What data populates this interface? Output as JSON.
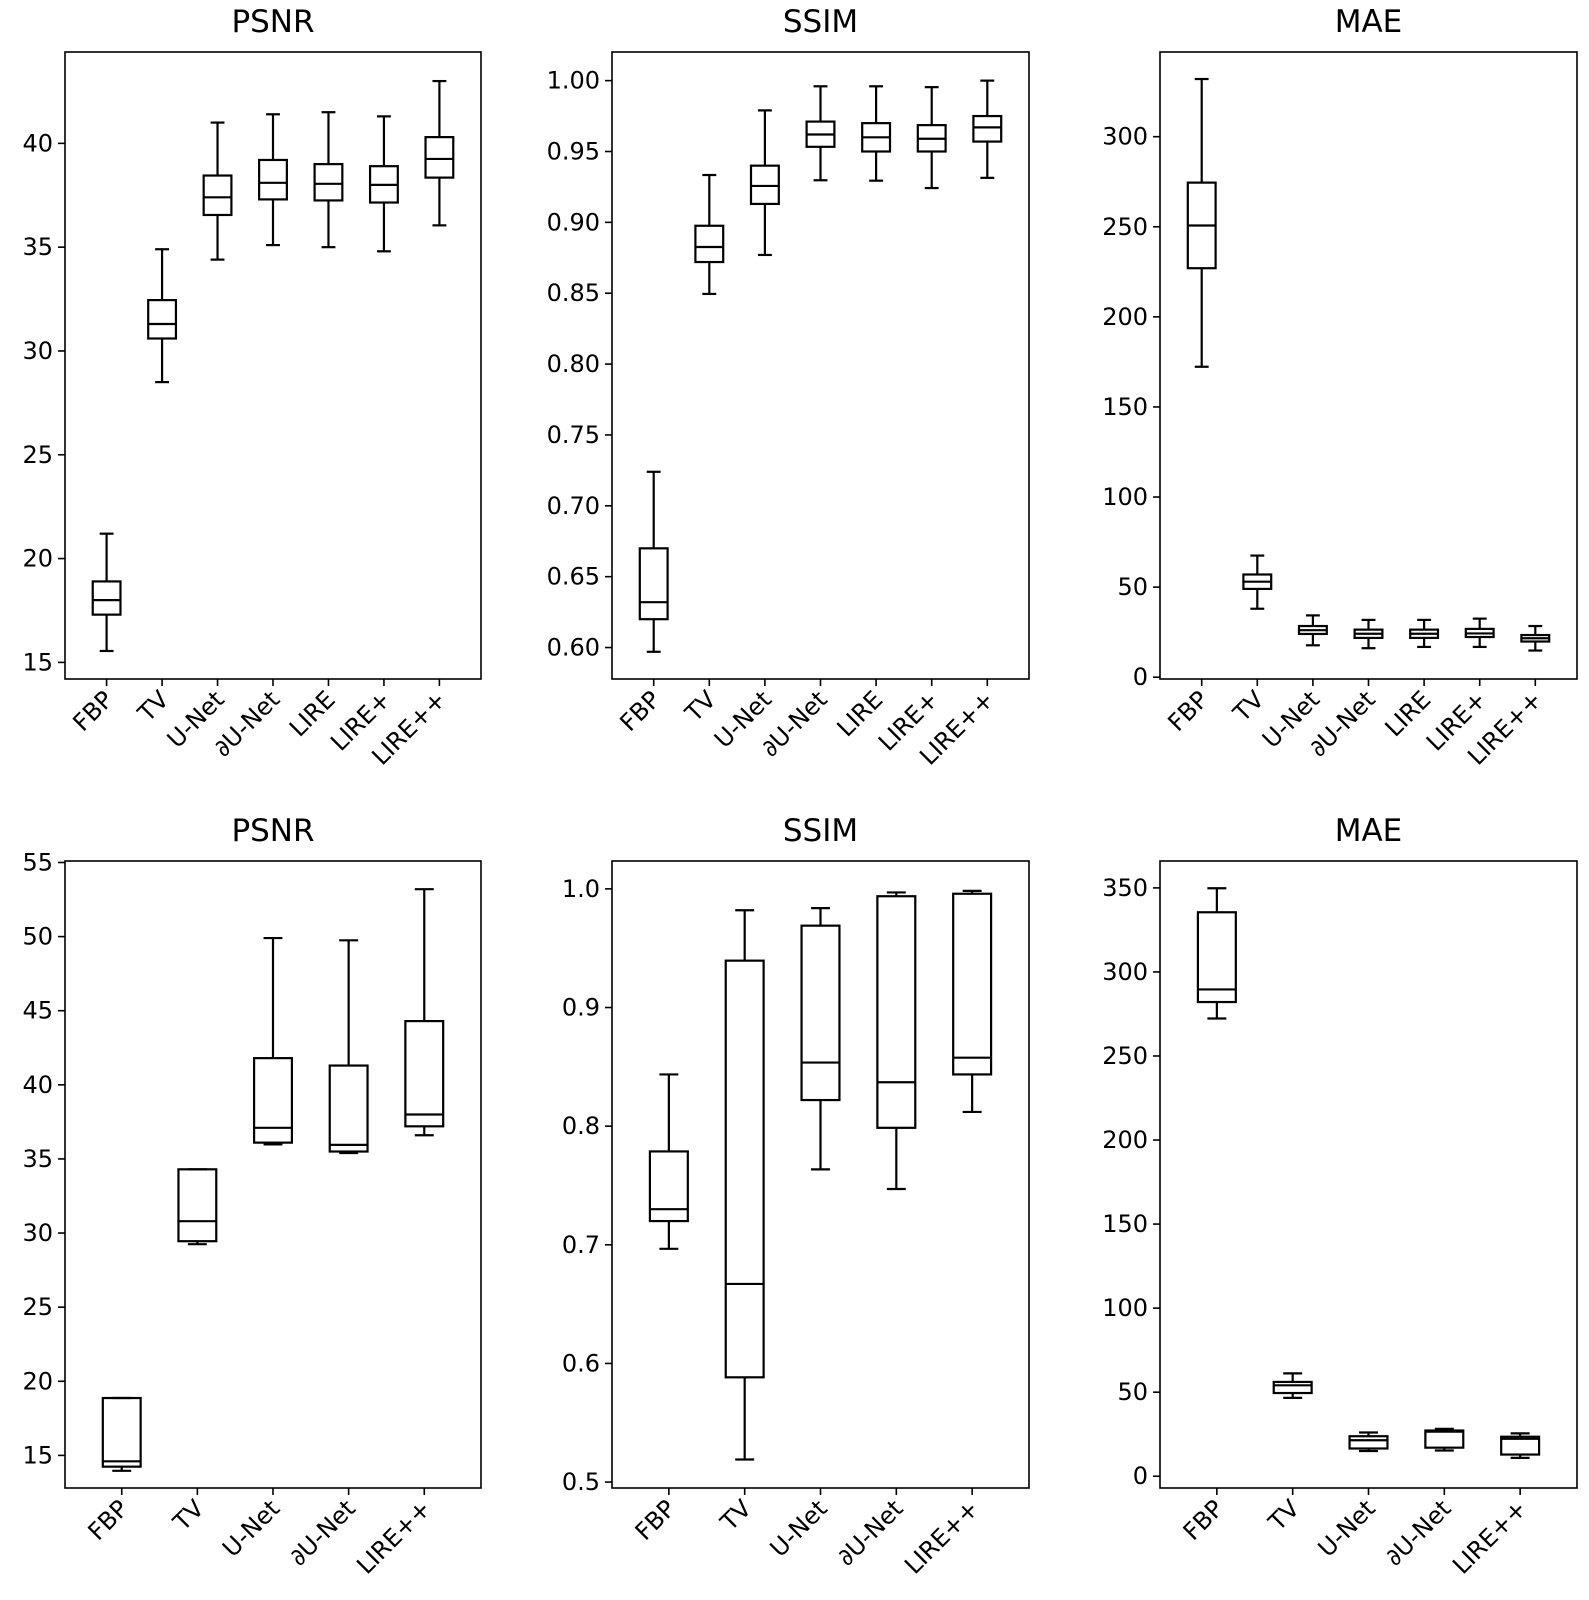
{
  "chart_data": [
    {
      "type": "boxplot",
      "title": "PSNR",
      "row": "top",
      "categories": [
        "FBP",
        "TV",
        "U-Net",
        "∂U-Net",
        "LIRE",
        "LIRE+",
        "LIRE++"
      ],
      "ylim": [
        14.2,
        44.4
      ],
      "yticks": [
        15,
        20,
        25,
        30,
        35,
        40
      ],
      "ytick_labels": [
        "15",
        "20",
        "25",
        "30",
        "35",
        "40"
      ],
      "boxes": [
        {
          "whislo": 15.55,
          "q1": 17.3,
          "med": 18.0,
          "q3": 18.9,
          "whishi": 21.2
        },
        {
          "whislo": 28.5,
          "q1": 30.6,
          "med": 31.3,
          "q3": 32.45,
          "whishi": 34.9
        },
        {
          "whislo": 34.4,
          "q1": 36.55,
          "med": 37.4,
          "q3": 38.45,
          "whishi": 41.0
        },
        {
          "whislo": 35.1,
          "q1": 37.3,
          "med": 38.1,
          "q3": 39.2,
          "whishi": 41.4
        },
        {
          "whislo": 35.0,
          "q1": 37.25,
          "med": 38.05,
          "q3": 39.0,
          "whishi": 41.5
        },
        {
          "whislo": 34.8,
          "q1": 37.15,
          "med": 38.0,
          "q3": 38.9,
          "whishi": 41.3
        },
        {
          "whislo": 36.05,
          "q1": 38.35,
          "med": 39.25,
          "q3": 40.3,
          "whishi": 43.0
        }
      ]
    },
    {
      "type": "boxplot",
      "title": "SSIM",
      "row": "top",
      "categories": [
        "FBP",
        "TV",
        "U-Net",
        "∂U-Net",
        "LIRE",
        "LIRE+",
        "LIRE++"
      ],
      "ylim": [
        0.5778,
        1.0202
      ],
      "yticks": [
        0.6,
        0.65,
        0.7,
        0.75,
        0.8,
        0.85,
        0.9,
        0.95,
        1.0
      ],
      "ytick_labels": [
        "0.60",
        "0.65",
        "0.70",
        "0.75",
        "0.80",
        "0.85",
        "0.90",
        "0.95",
        "1.00"
      ],
      "boxes": [
        {
          "whislo": 0.597,
          "q1": 0.62,
          "med": 0.632,
          "q3": 0.67,
          "whishi": 0.724
        },
        {
          "whislo": 0.8495,
          "q1": 0.872,
          "med": 0.8826,
          "q3": 0.8976,
          "whishi": 0.9334
        },
        {
          "whislo": 0.877,
          "q1": 0.913,
          "med": 0.9257,
          "q3": 0.94,
          "whishi": 0.979
        },
        {
          "whislo": 0.9297,
          "q1": 0.9533,
          "med": 0.962,
          "q3": 0.9711,
          "whishi": 0.996
        },
        {
          "whislo": 0.9294,
          "q1": 0.95,
          "med": 0.96,
          "q3": 0.97,
          "whishi": 0.996
        },
        {
          "whislo": 0.9242,
          "q1": 0.95,
          "med": 0.959,
          "q3": 0.9686,
          "whishi": 0.9954
        },
        {
          "whislo": 0.9314,
          "q1": 0.957,
          "med": 0.967,
          "q3": 0.975,
          "whishi": 1.0
        }
      ]
    },
    {
      "type": "boxplot",
      "title": "MAE",
      "row": "top",
      "categories": [
        "FBP",
        "TV",
        "U-Net",
        "∂U-Net",
        "LIRE",
        "LIRE+",
        "LIRE++"
      ],
      "ylim": [
        -1,
        347
      ],
      "yticks": [
        0,
        50,
        100,
        150,
        200,
        250,
        300
      ],
      "ytick_labels": [
        "0",
        "50",
        "100",
        "150",
        "200",
        "250",
        "300"
      ],
      "boxes": [
        {
          "whislo": 172.3,
          "q1": 227,
          "med": 250.7,
          "q3": 274.5,
          "whishi": 332
        },
        {
          "whislo": 38,
          "q1": 49,
          "med": 53,
          "q3": 57,
          "whishi": 67.5
        },
        {
          "whislo": 17.7,
          "q1": 24,
          "med": 26.1,
          "q3": 28.4,
          "whishi": 34.3
        },
        {
          "whislo": 16.1,
          "q1": 21.8,
          "med": 24.1,
          "q3": 26.4,
          "whishi": 31.8
        },
        {
          "whislo": 16.8,
          "q1": 21.8,
          "med": 24.1,
          "q3": 26.4,
          "whishi": 31.8
        },
        {
          "whislo": 16.8,
          "q1": 22.3,
          "med": 24.3,
          "q3": 26.8,
          "whishi": 32.5
        },
        {
          "whislo": 14.8,
          "q1": 19.8,
          "med": 21.6,
          "q3": 23.4,
          "whishi": 28.4
        }
      ]
    },
    {
      "type": "boxplot",
      "title": "PSNR",
      "row": "bottom",
      "categories": [
        "FBP",
        "TV",
        "U-Net",
        "∂U-Net",
        "LIRE++"
      ],
      "ylim": [
        12.8,
        55.1
      ],
      "yticks": [
        15,
        20,
        25,
        30,
        35,
        40,
        45,
        50,
        55
      ],
      "ytick_labels": [
        "15",
        "20",
        "25",
        "30",
        "35",
        "40",
        "45",
        "50",
        "55"
      ],
      "boxes": [
        {
          "whislo": 13.96,
          "q1": 14.24,
          "med": 14.6,
          "q3": 18.87,
          "whishi": 18.87
        },
        {
          "whislo": 29.25,
          "q1": 29.45,
          "med": 30.8,
          "q3": 34.3,
          "whishi": 34.3
        },
        {
          "whislo": 35.98,
          "q1": 36.1,
          "med": 37.1,
          "q3": 41.8,
          "whishi": 49.9
        },
        {
          "whislo": 35.4,
          "q1": 35.5,
          "med": 35.95,
          "q3": 41.3,
          "whishi": 49.75
        },
        {
          "whislo": 36.6,
          "q1": 37.2,
          "med": 38.0,
          "q3": 44.3,
          "whishi": 53.2
        }
      ]
    },
    {
      "type": "boxplot",
      "title": "SSIM",
      "row": "bottom",
      "categories": [
        "FBP",
        "TV",
        "U-Net",
        "∂U-Net",
        "LIRE++"
      ],
      "ylim": [
        0.495,
        1.0235
      ],
      "yticks": [
        0.5,
        0.6,
        0.7,
        0.8,
        0.9,
        1.0
      ],
      "ytick_labels": [
        "0.5",
        "0.6",
        "0.7",
        "0.8",
        "0.9",
        "1.0"
      ],
      "boxes": [
        {
          "whislo": 0.6966,
          "q1": 0.72,
          "med": 0.73,
          "q3": 0.7787,
          "whishi": 0.8436
        },
        {
          "whislo": 0.519,
          "q1": 0.5883,
          "med": 0.667,
          "q3": 0.9395,
          "whishi": 0.982
        },
        {
          "whislo": 0.7636,
          "q1": 0.822,
          "med": 0.8536,
          "q3": 0.969,
          "whishi": 0.9838
        },
        {
          "whislo": 0.747,
          "q1": 0.7986,
          "med": 0.837,
          "q3": 0.9938,
          "whishi": 0.997
        },
        {
          "whislo": 0.812,
          "q1": 0.8436,
          "med": 0.8577,
          "q3": 0.9959,
          "whishi": 0.9983
        }
      ]
    },
    {
      "type": "boxplot",
      "title": "MAE",
      "row": "bottom",
      "categories": [
        "FBP",
        "TV",
        "U-Net",
        "∂U-Net",
        "LIRE++"
      ],
      "ylim": [
        -7,
        366
      ],
      "yticks": [
        0,
        50,
        100,
        150,
        200,
        250,
        300,
        350
      ],
      "ytick_labels": [
        "0",
        "50",
        "100",
        "150",
        "200",
        "250",
        "300",
        "350"
      ],
      "boxes": [
        {
          "whislo": 272.3,
          "q1": 282.1,
          "med": 289.6,
          "q3": 335.5,
          "whishi": 349.8
        },
        {
          "whislo": 46.6,
          "q1": 49.5,
          "med": 54.1,
          "q3": 56.1,
          "whishi": 61.2
        },
        {
          "whislo": 15,
          "q1": 16.5,
          "med": 21.4,
          "q3": 23.8,
          "whishi": 26
        },
        {
          "whislo": 15.3,
          "q1": 17,
          "med": 26.5,
          "q3": 27.2,
          "whishi": 28.2
        },
        {
          "whislo": 10.9,
          "q1": 12.9,
          "med": 22.3,
          "q3": 23.5,
          "whishi": 25.5
        }
      ]
    }
  ]
}
